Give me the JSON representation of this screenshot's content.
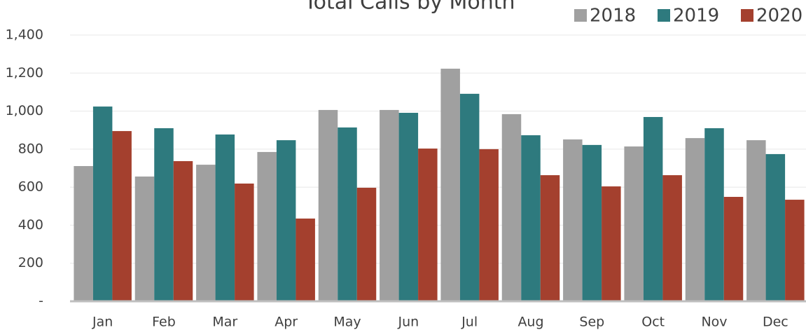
{
  "chart_data": {
    "type": "bar",
    "title": "Total Calls by Month",
    "categories": [
      "Jan",
      "Feb",
      "Mar",
      "Apr",
      "May",
      "Jun",
      "Jul",
      "Aug",
      "Sep",
      "Oct",
      "Nov",
      "Dec"
    ],
    "series": [
      {
        "name": "2018",
        "color": "#a0a0a0",
        "values": [
          711,
          656,
          718,
          785,
          1006,
          1006,
          1223,
          984,
          851,
          814,
          858,
          847
        ]
      },
      {
        "name": "2019",
        "color": "#2e7a7e",
        "values": [
          1024,
          910,
          877,
          847,
          914,
          991,
          1091,
          873,
          822,
          969,
          910,
          774
        ]
      },
      {
        "name": "2020",
        "color": "#a4402e",
        "values": [
          895,
          737,
          619,
          435,
          597,
          803,
          800,
          663,
          604,
          663,
          549,
          534
        ]
      }
    ],
    "ylim": [
      0,
      1400
    ],
    "yticks": [
      {
        "value": 0,
        "label": "-"
      },
      200,
      400,
      600,
      800,
      {
        "value": 1000,
        "label": "1,000"
      },
      {
        "value": 1200,
        "label": "1,200"
      },
      {
        "value": 1400,
        "label": "1,400"
      }
    ],
    "grid": true,
    "legend": "top-right"
  }
}
